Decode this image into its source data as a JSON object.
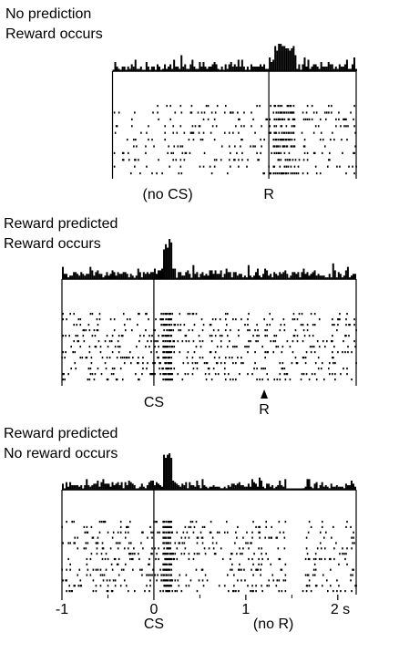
{
  "chart_data": {
    "type": "raster",
    "xlabel": "s",
    "x_ticks": [
      -1,
      0,
      1,
      2
    ],
    "x_tick_labels": [
      "-1",
      "0",
      "1",
      "2 s"
    ],
    "xlim": [
      -1,
      2.2
    ],
    "colors": {
      "ink": "#000000",
      "background": "#ffffff"
    },
    "panels": [
      {
        "title_lines": [
          "No prediction",
          "Reward occurs"
        ],
        "event_lines": [
          1.25
        ],
        "event_labels": [
          {
            "text": "(no CS)",
            "x": 0.15
          },
          {
            "text": "R",
            "x": 1.25
          }
        ],
        "arrow_events": [],
        "xlim": [
          -0.45,
          2.2
        ],
        "rows": 11,
        "baseline_rate": 10,
        "bursts": [
          {
            "start": 1.3,
            "end": 1.55,
            "rate": 45
          }
        ],
        "gaps": []
      },
      {
        "title_lines": [
          "Reward predicted",
          "Reward occurs"
        ],
        "event_lines": [
          0
        ],
        "event_labels": [
          {
            "text": "CS",
            "x": 0
          },
          {
            "text": "R",
            "x": 1.2
          }
        ],
        "arrow_events": [
          1.2
        ],
        "xlim": [
          -1,
          2.2
        ],
        "rows": 13,
        "baseline_rate": 12,
        "bursts": [
          {
            "start": 0.1,
            "end": 0.2,
            "rate": 80
          }
        ],
        "gaps": []
      },
      {
        "title_lines": [
          "Reward predicted",
          "No reward occurs"
        ],
        "event_lines": [
          0
        ],
        "event_labels": [
          {
            "text": "CS",
            "x": 0
          },
          {
            "text": "(no R)",
            "x": 1.3
          }
        ],
        "arrow_events": [],
        "xlim": [
          -1,
          2.2
        ],
        "rows": 14,
        "baseline_rate": 12,
        "bursts": [
          {
            "start": 0.1,
            "end": 0.2,
            "rate": 80
          }
        ],
        "gaps": [
          {
            "start": 1.45,
            "end": 1.65
          }
        ]
      }
    ]
  }
}
